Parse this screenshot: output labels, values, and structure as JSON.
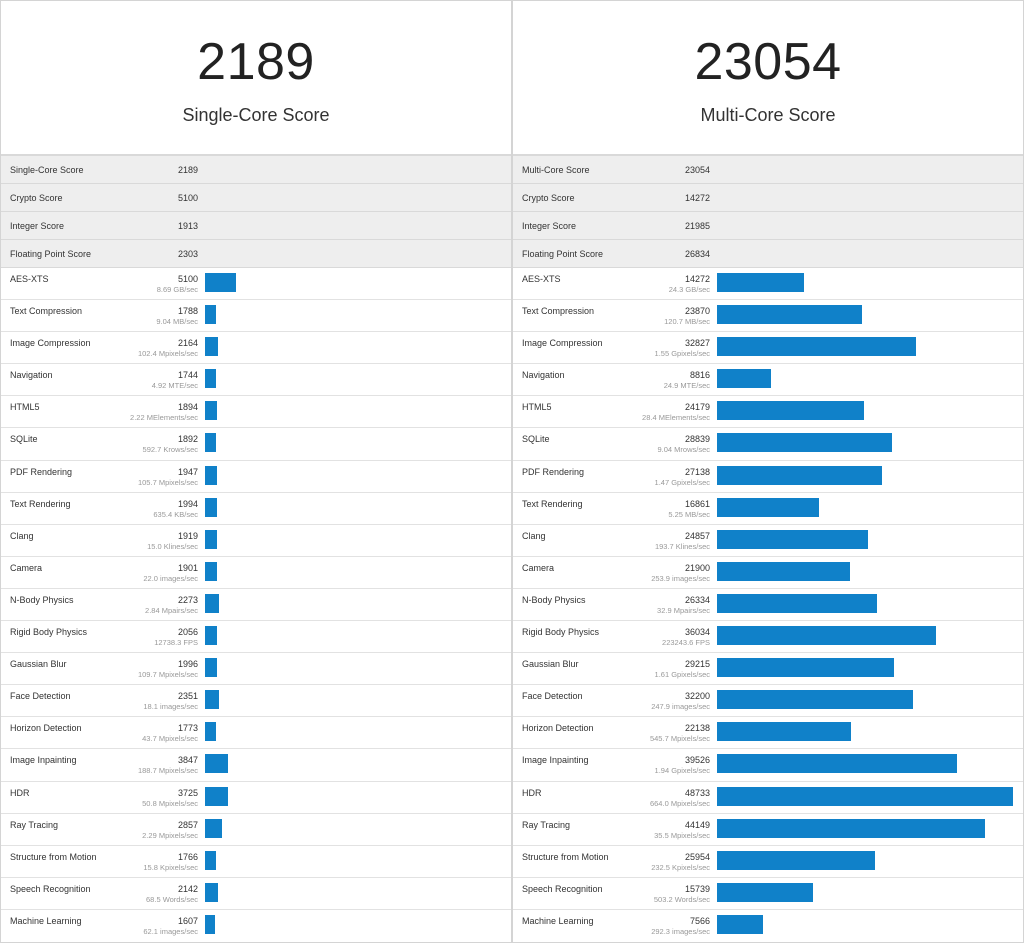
{
  "bar_color": "#1081c9",
  "max_score": 48733,
  "single": {
    "score": "2189",
    "label": "Single-Core Score",
    "summary": [
      {
        "name": "Single-Core Score",
        "value": "2189"
      },
      {
        "name": "Crypto Score",
        "value": "5100"
      },
      {
        "name": "Integer Score",
        "value": "1913"
      },
      {
        "name": "Floating Point Score",
        "value": "2303"
      }
    ],
    "workloads": [
      {
        "name": "AES-XTS",
        "score": "5100",
        "rate": "8.69 GB/sec",
        "value": 5100
      },
      {
        "name": "Text Compression",
        "score": "1788",
        "rate": "9.04 MB/sec",
        "value": 1788
      },
      {
        "name": "Image Compression",
        "score": "2164",
        "rate": "102.4 Mpixels/sec",
        "value": 2164
      },
      {
        "name": "Navigation",
        "score": "1744",
        "rate": "4.92 MTE/sec",
        "value": 1744
      },
      {
        "name": "HTML5",
        "score": "1894",
        "rate": "2.22 MElements/sec",
        "value": 1894
      },
      {
        "name": "SQLite",
        "score": "1892",
        "rate": "592.7 Krows/sec",
        "value": 1892
      },
      {
        "name": "PDF Rendering",
        "score": "1947",
        "rate": "105.7 Mpixels/sec",
        "value": 1947
      },
      {
        "name": "Text Rendering",
        "score": "1994",
        "rate": "635.4 KB/sec",
        "value": 1994
      },
      {
        "name": "Clang",
        "score": "1919",
        "rate": "15.0 Klines/sec",
        "value": 1919
      },
      {
        "name": "Camera",
        "score": "1901",
        "rate": "22.0 images/sec",
        "value": 1901
      },
      {
        "name": "N-Body Physics",
        "score": "2273",
        "rate": "2.84 Mpairs/sec",
        "value": 2273
      },
      {
        "name": "Rigid Body Physics",
        "score": "2056",
        "rate": "12738.3 FPS",
        "value": 2056
      },
      {
        "name": "Gaussian Blur",
        "score": "1996",
        "rate": "109.7 Mpixels/sec",
        "value": 1996
      },
      {
        "name": "Face Detection",
        "score": "2351",
        "rate": "18.1 images/sec",
        "value": 2351
      },
      {
        "name": "Horizon Detection",
        "score": "1773",
        "rate": "43.7 Mpixels/sec",
        "value": 1773
      },
      {
        "name": "Image Inpainting",
        "score": "3847",
        "rate": "188.7 Mpixels/sec",
        "value": 3847
      },
      {
        "name": "HDR",
        "score": "3725",
        "rate": "50.8 Mpixels/sec",
        "value": 3725
      },
      {
        "name": "Ray Tracing",
        "score": "2857",
        "rate": "2.29 Mpixels/sec",
        "value": 2857
      },
      {
        "name": "Structure from Motion",
        "score": "1766",
        "rate": "15.8 Kpixels/sec",
        "value": 1766
      },
      {
        "name": "Speech Recognition",
        "score": "2142",
        "rate": "68.5 Words/sec",
        "value": 2142
      },
      {
        "name": "Machine Learning",
        "score": "1607",
        "rate": "62.1 images/sec",
        "value": 1607
      }
    ]
  },
  "multi": {
    "score": "23054",
    "label": "Multi-Core Score",
    "summary": [
      {
        "name": "Multi-Core Score",
        "value": "23054"
      },
      {
        "name": "Crypto Score",
        "value": "14272"
      },
      {
        "name": "Integer Score",
        "value": "21985"
      },
      {
        "name": "Floating Point Score",
        "value": "26834"
      }
    ],
    "workloads": [
      {
        "name": "AES-XTS",
        "score": "14272",
        "rate": "24.3 GB/sec",
        "value": 14272
      },
      {
        "name": "Text Compression",
        "score": "23870",
        "rate": "120.7 MB/sec",
        "value": 23870
      },
      {
        "name": "Image Compression",
        "score": "32827",
        "rate": "1.55 Gpixels/sec",
        "value": 32827
      },
      {
        "name": "Navigation",
        "score": "8816",
        "rate": "24.9 MTE/sec",
        "value": 8816
      },
      {
        "name": "HTML5",
        "score": "24179",
        "rate": "28.4 MElements/sec",
        "value": 24179
      },
      {
        "name": "SQLite",
        "score": "28839",
        "rate": "9.04 Mrows/sec",
        "value": 28839
      },
      {
        "name": "PDF Rendering",
        "score": "27138",
        "rate": "1.47 Gpixels/sec",
        "value": 27138
      },
      {
        "name": "Text Rendering",
        "score": "16861",
        "rate": "5.25 MB/sec",
        "value": 16861
      },
      {
        "name": "Clang",
        "score": "24857",
        "rate": "193.7 Klines/sec",
        "value": 24857
      },
      {
        "name": "Camera",
        "score": "21900",
        "rate": "253.9 images/sec",
        "value": 21900
      },
      {
        "name": "N-Body Physics",
        "score": "26334",
        "rate": "32.9 Mpairs/sec",
        "value": 26334
      },
      {
        "name": "Rigid Body Physics",
        "score": "36034",
        "rate": "223243.6 FPS",
        "value": 36034
      },
      {
        "name": "Gaussian Blur",
        "score": "29215",
        "rate": "1.61 Gpixels/sec",
        "value": 29215
      },
      {
        "name": "Face Detection",
        "score": "32200",
        "rate": "247.9 images/sec",
        "value": 32200
      },
      {
        "name": "Horizon Detection",
        "score": "22138",
        "rate": "545.7 Mpixels/sec",
        "value": 22138
      },
      {
        "name": "Image Inpainting",
        "score": "39526",
        "rate": "1.94 Gpixels/sec",
        "value": 39526
      },
      {
        "name": "HDR",
        "score": "48733",
        "rate": "664.0 Mpixels/sec",
        "value": 48733
      },
      {
        "name": "Ray Tracing",
        "score": "44149",
        "rate": "35.5 Mpixels/sec",
        "value": 44149
      },
      {
        "name": "Structure from Motion",
        "score": "25954",
        "rate": "232.5 Kpixels/sec",
        "value": 25954
      },
      {
        "name": "Speech Recognition",
        "score": "15739",
        "rate": "503.2 Words/sec",
        "value": 15739
      },
      {
        "name": "Machine Learning",
        "score": "7566",
        "rate": "292.3 images/sec",
        "value": 7566
      }
    ]
  }
}
